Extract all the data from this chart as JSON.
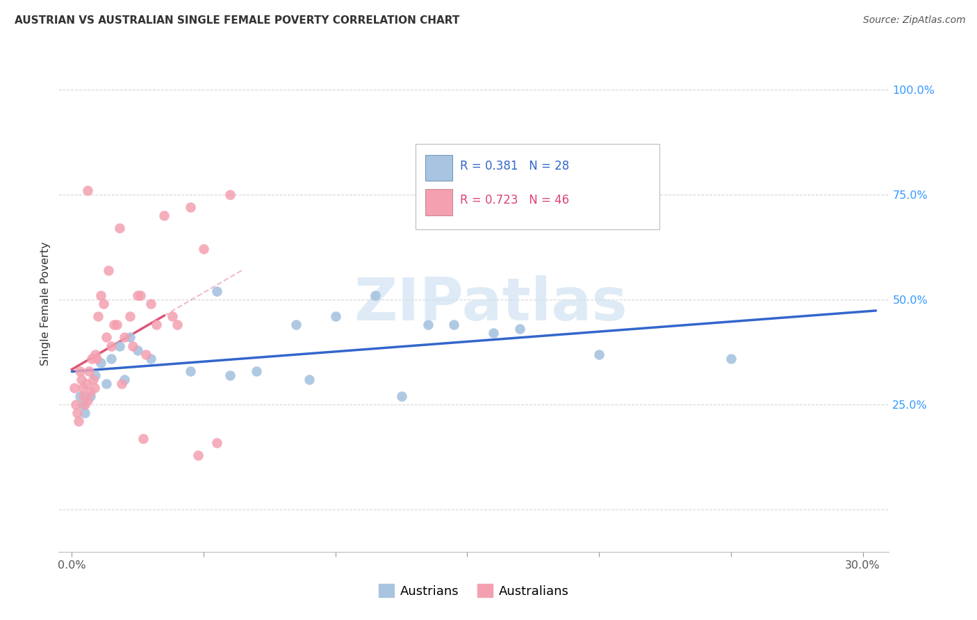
{
  "title": "AUSTRIAN VS AUSTRALIAN SINGLE FEMALE POVERTY CORRELATION CHART",
  "source": "Source: ZipAtlas.com",
  "ylabel": "Single Female Poverty",
  "xlim": [
    -0.5,
    31.0
  ],
  "ylim": [
    -10.0,
    108.0
  ],
  "yticks": [
    0,
    25,
    50,
    75,
    100
  ],
  "ytick_labels": [
    "",
    "25.0%",
    "50.0%",
    "75.0%",
    "100.0%"
  ],
  "xticks": [
    0,
    5,
    10,
    15,
    20,
    25,
    30
  ],
  "xtick_labels": [
    "0.0%",
    "",
    "",
    "",
    "",
    "",
    "30.0%"
  ],
  "austrians_color": "#a8c4e0",
  "australians_color": "#f4a0b0",
  "austrians_line_color": "#3366cc",
  "australians_line_color": "#dd5577",
  "legend_box1_color": "#a8c4e0",
  "legend_box2_color": "#f4a0b0",
  "legend_text1": "R = 0.381   N = 28",
  "legend_text2": "R = 0.723   N = 46",
  "legend_text1_color": "#3366cc",
  "legend_text2_color": "#dd4477",
  "watermark": "ZIPatlas",
  "watermark_color": "#c8dff0",
  "grid_color": "#cccccc",
  "background_color": "#ffffff",
  "austrians_x": [
    0.3,
    0.4,
    0.5,
    0.7,
    0.9,
    1.1,
    1.3,
    1.5,
    1.8,
    2.0,
    2.2,
    2.5,
    3.0,
    4.5,
    5.5,
    7.0,
    8.5,
    10.0,
    11.5,
    12.5,
    14.5,
    16.0,
    17.0,
    20.0,
    25.0,
    6.0,
    9.0,
    13.5
  ],
  "austrians_y": [
    27,
    25,
    23,
    27,
    32,
    35,
    30,
    36,
    39,
    31,
    41,
    38,
    36,
    33,
    52,
    33,
    44,
    46,
    51,
    27,
    44,
    42,
    43,
    37,
    36,
    32,
    31,
    44
  ],
  "australians_x": [
    0.1,
    0.15,
    0.2,
    0.25,
    0.3,
    0.35,
    0.4,
    0.45,
    0.5,
    0.55,
    0.6,
    0.65,
    0.7,
    0.75,
    0.8,
    0.85,
    0.9,
    1.0,
    1.1,
    1.2,
    1.3,
    1.5,
    1.6,
    1.8,
    2.0,
    2.2,
    2.5,
    2.8,
    3.0,
    3.5,
    1.4,
    0.95,
    1.7,
    2.3,
    3.2,
    4.0,
    5.0,
    6.0,
    2.6,
    3.8,
    4.5,
    0.6,
    1.9,
    2.7,
    4.8,
    5.5
  ],
  "australians_y": [
    29,
    25,
    23,
    21,
    33,
    31,
    29,
    27,
    25,
    30,
    26,
    33,
    28,
    36,
    31,
    29,
    37,
    46,
    51,
    49,
    41,
    39,
    44,
    67,
    41,
    46,
    51,
    37,
    49,
    70,
    57,
    36,
    44,
    39,
    44,
    44,
    62,
    75,
    51,
    46,
    72,
    76,
    30,
    17,
    13,
    16
  ]
}
